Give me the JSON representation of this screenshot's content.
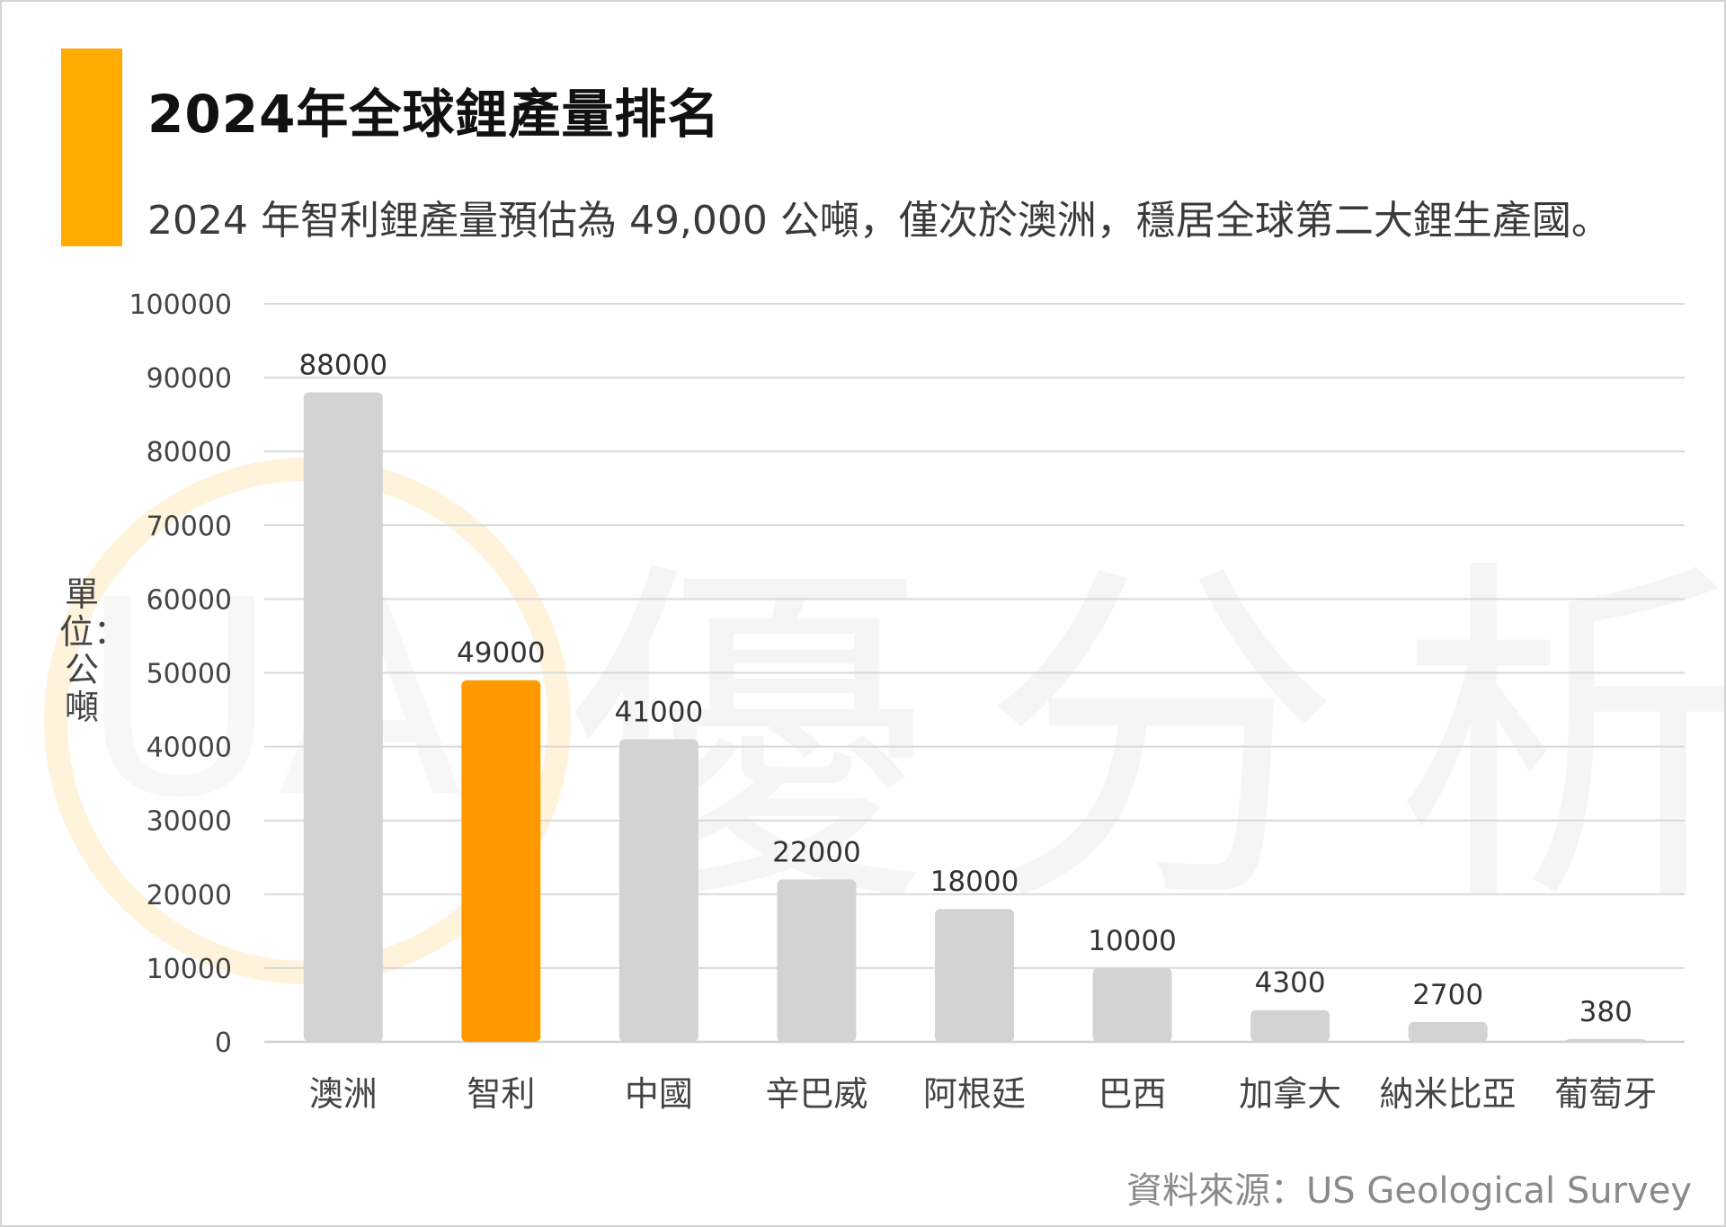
{
  "header": {
    "title": "2024年全球鋰產量排名",
    "subtitle": "2024 年智利鋰產量預估為 49,000 公噸，僅次於澳洲，穩居全球第二大鋰生產國。"
  },
  "watermark": {
    "text": "優分析",
    "logo": "UA"
  },
  "footer": {
    "source": "資料來源：US Geological Survey"
  },
  "colors": {
    "accent": "#FFAB00",
    "highlight_bar": "#FF9900",
    "default_bar": "#D3D3D3"
  },
  "chart_data": {
    "type": "bar",
    "title": "2024年全球鋰產量排名",
    "ylabel": "單位：公噸",
    "xlabel": "",
    "categories": [
      "澳洲",
      "智利",
      "中國",
      "辛巴威",
      "阿根廷",
      "巴西",
      "加拿大",
      "納米比亞",
      "葡萄牙"
    ],
    "values": [
      88000,
      49000,
      41000,
      22000,
      18000,
      10000,
      4300,
      2700,
      380
    ],
    "highlight": "智利",
    "ylim": [
      0,
      100000
    ],
    "yticks": [
      0,
      10000,
      20000,
      30000,
      40000,
      50000,
      60000,
      70000,
      80000,
      90000,
      100000
    ],
    "data_labels": true,
    "grid": true,
    "legend": "none"
  }
}
